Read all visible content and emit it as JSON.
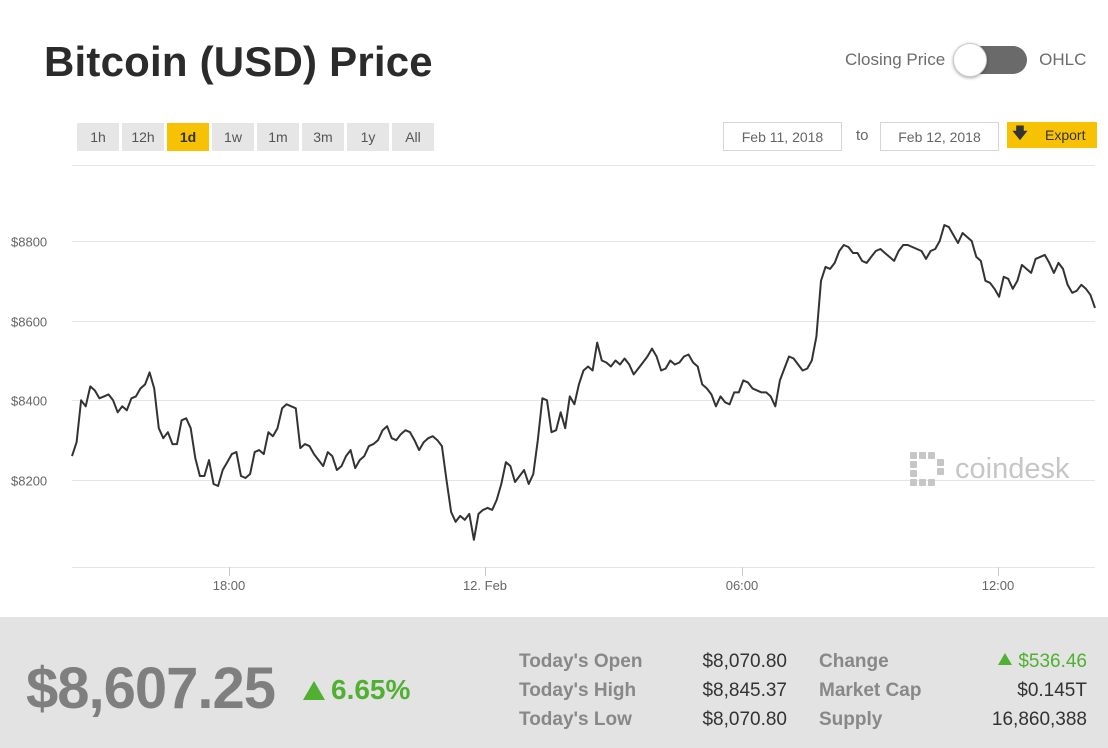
{
  "title": "Bitcoin (USD) Price",
  "toggle": {
    "left_label": "Closing Price",
    "right_label": "OHLC",
    "selected": "Closing Price"
  },
  "ranges": [
    "1h",
    "12h",
    "1d",
    "1w",
    "1m",
    "3m",
    "1y",
    "All"
  ],
  "active_range": "1d",
  "date_from": "Feb 11, 2018",
  "to_label": "to",
  "date_to": "Feb 12, 2018",
  "export_label": "Export",
  "watermark": "coindesk",
  "colors": {
    "accent": "#f7c204",
    "line": "#333333",
    "up": "#4fb031"
  },
  "chart_data": {
    "type": "line",
    "title": "",
    "xlabel": "",
    "ylabel": "",
    "y_ticks": [
      "$8200",
      "$8400",
      "$8600",
      "$8800"
    ],
    "x_ticks": [
      "18:00",
      "12. Feb",
      "06:00",
      "12:00"
    ],
    "ylim": [
      8000,
      9000
    ],
    "grid": true,
    "series": [
      {
        "values": [
          8260,
          8295,
          8400,
          8385,
          8435,
          8425,
          8405,
          8410,
          8415,
          8400,
          8370,
          8385,
          8375,
          8405,
          8410,
          8430,
          8440,
          8470,
          8430,
          8330,
          8305,
          8320,
          8290,
          8290,
          8350,
          8355,
          8330,
          8255,
          8210,
          8210,
          8250,
          8190,
          8185,
          8225,
          8245,
          8265,
          8270,
          8210,
          8205,
          8215,
          8270,
          8275,
          8265,
          8320,
          8310,
          8330,
          8380,
          8390,
          8385,
          8380,
          8280,
          8290,
          8285,
          8265,
          8250,
          8235,
          8270,
          8260,
          8225,
          8235,
          8260,
          8275,
          8230,
          8250,
          8260,
          8285,
          8290,
          8300,
          8325,
          8335,
          8305,
          8300,
          8315,
          8325,
          8320,
          8300,
          8275,
          8295,
          8305,
          8310,
          8300,
          8285,
          8200,
          8120,
          8095,
          8110,
          8100,
          8115,
          8050,
          8115,
          8125,
          8130,
          8125,
          8150,
          8190,
          8245,
          8235,
          8195,
          8210,
          8225,
          8190,
          8215,
          8300,
          8405,
          8400,
          8320,
          8325,
          8370,
          8330,
          8410,
          8390,
          8440,
          8475,
          8485,
          8475,
          8545,
          8500,
          8495,
          8485,
          8500,
          8490,
          8505,
          8490,
          8465,
          8480,
          8495,
          8510,
          8530,
          8510,
          8475,
          8480,
          8500,
          8490,
          8495,
          8510,
          8515,
          8495,
          8485,
          8440,
          8430,
          8415,
          8385,
          8410,
          8395,
          8390,
          8420,
          8420,
          8450,
          8445,
          8430,
          8425,
          8420,
          8420,
          8410,
          8385,
          8450,
          8480,
          8510,
          8505,
          8490,
          8475,
          8480,
          8500,
          8560,
          8700,
          8735,
          8730,
          8745,
          8775,
          8790,
          8785,
          8770,
          8770,
          8750,
          8745,
          8760,
          8775,
          8780,
          8770,
          8760,
          8750,
          8775,
          8790,
          8790,
          8785,
          8780,
          8775,
          8755,
          8775,
          8780,
          8800,
          8840,
          8835,
          8815,
          8795,
          8820,
          8810,
          8800,
          8760,
          8750,
          8700,
          8695,
          8680,
          8660,
          8710,
          8705,
          8680,
          8700,
          8740,
          8730,
          8720,
          8755,
          8760,
          8765,
          8745,
          8720,
          8745,
          8730,
          8690,
          8670,
          8675,
          8690,
          8680,
          8665,
          8632
        ]
      }
    ]
  },
  "footer": {
    "price": "$8,607.25",
    "change_pct": "6.65%",
    "stats": [
      {
        "label": "Today's Open",
        "value": "$8,070.80"
      },
      {
        "label": "Today's High",
        "value": "$8,845.37"
      },
      {
        "label": "Today's Low",
        "value": "$8,070.80"
      },
      {
        "label": "Change",
        "value": "$536.46"
      },
      {
        "label": "Market Cap",
        "value": "$0.145T"
      },
      {
        "label": "Supply",
        "value": "16,860,388"
      }
    ]
  }
}
